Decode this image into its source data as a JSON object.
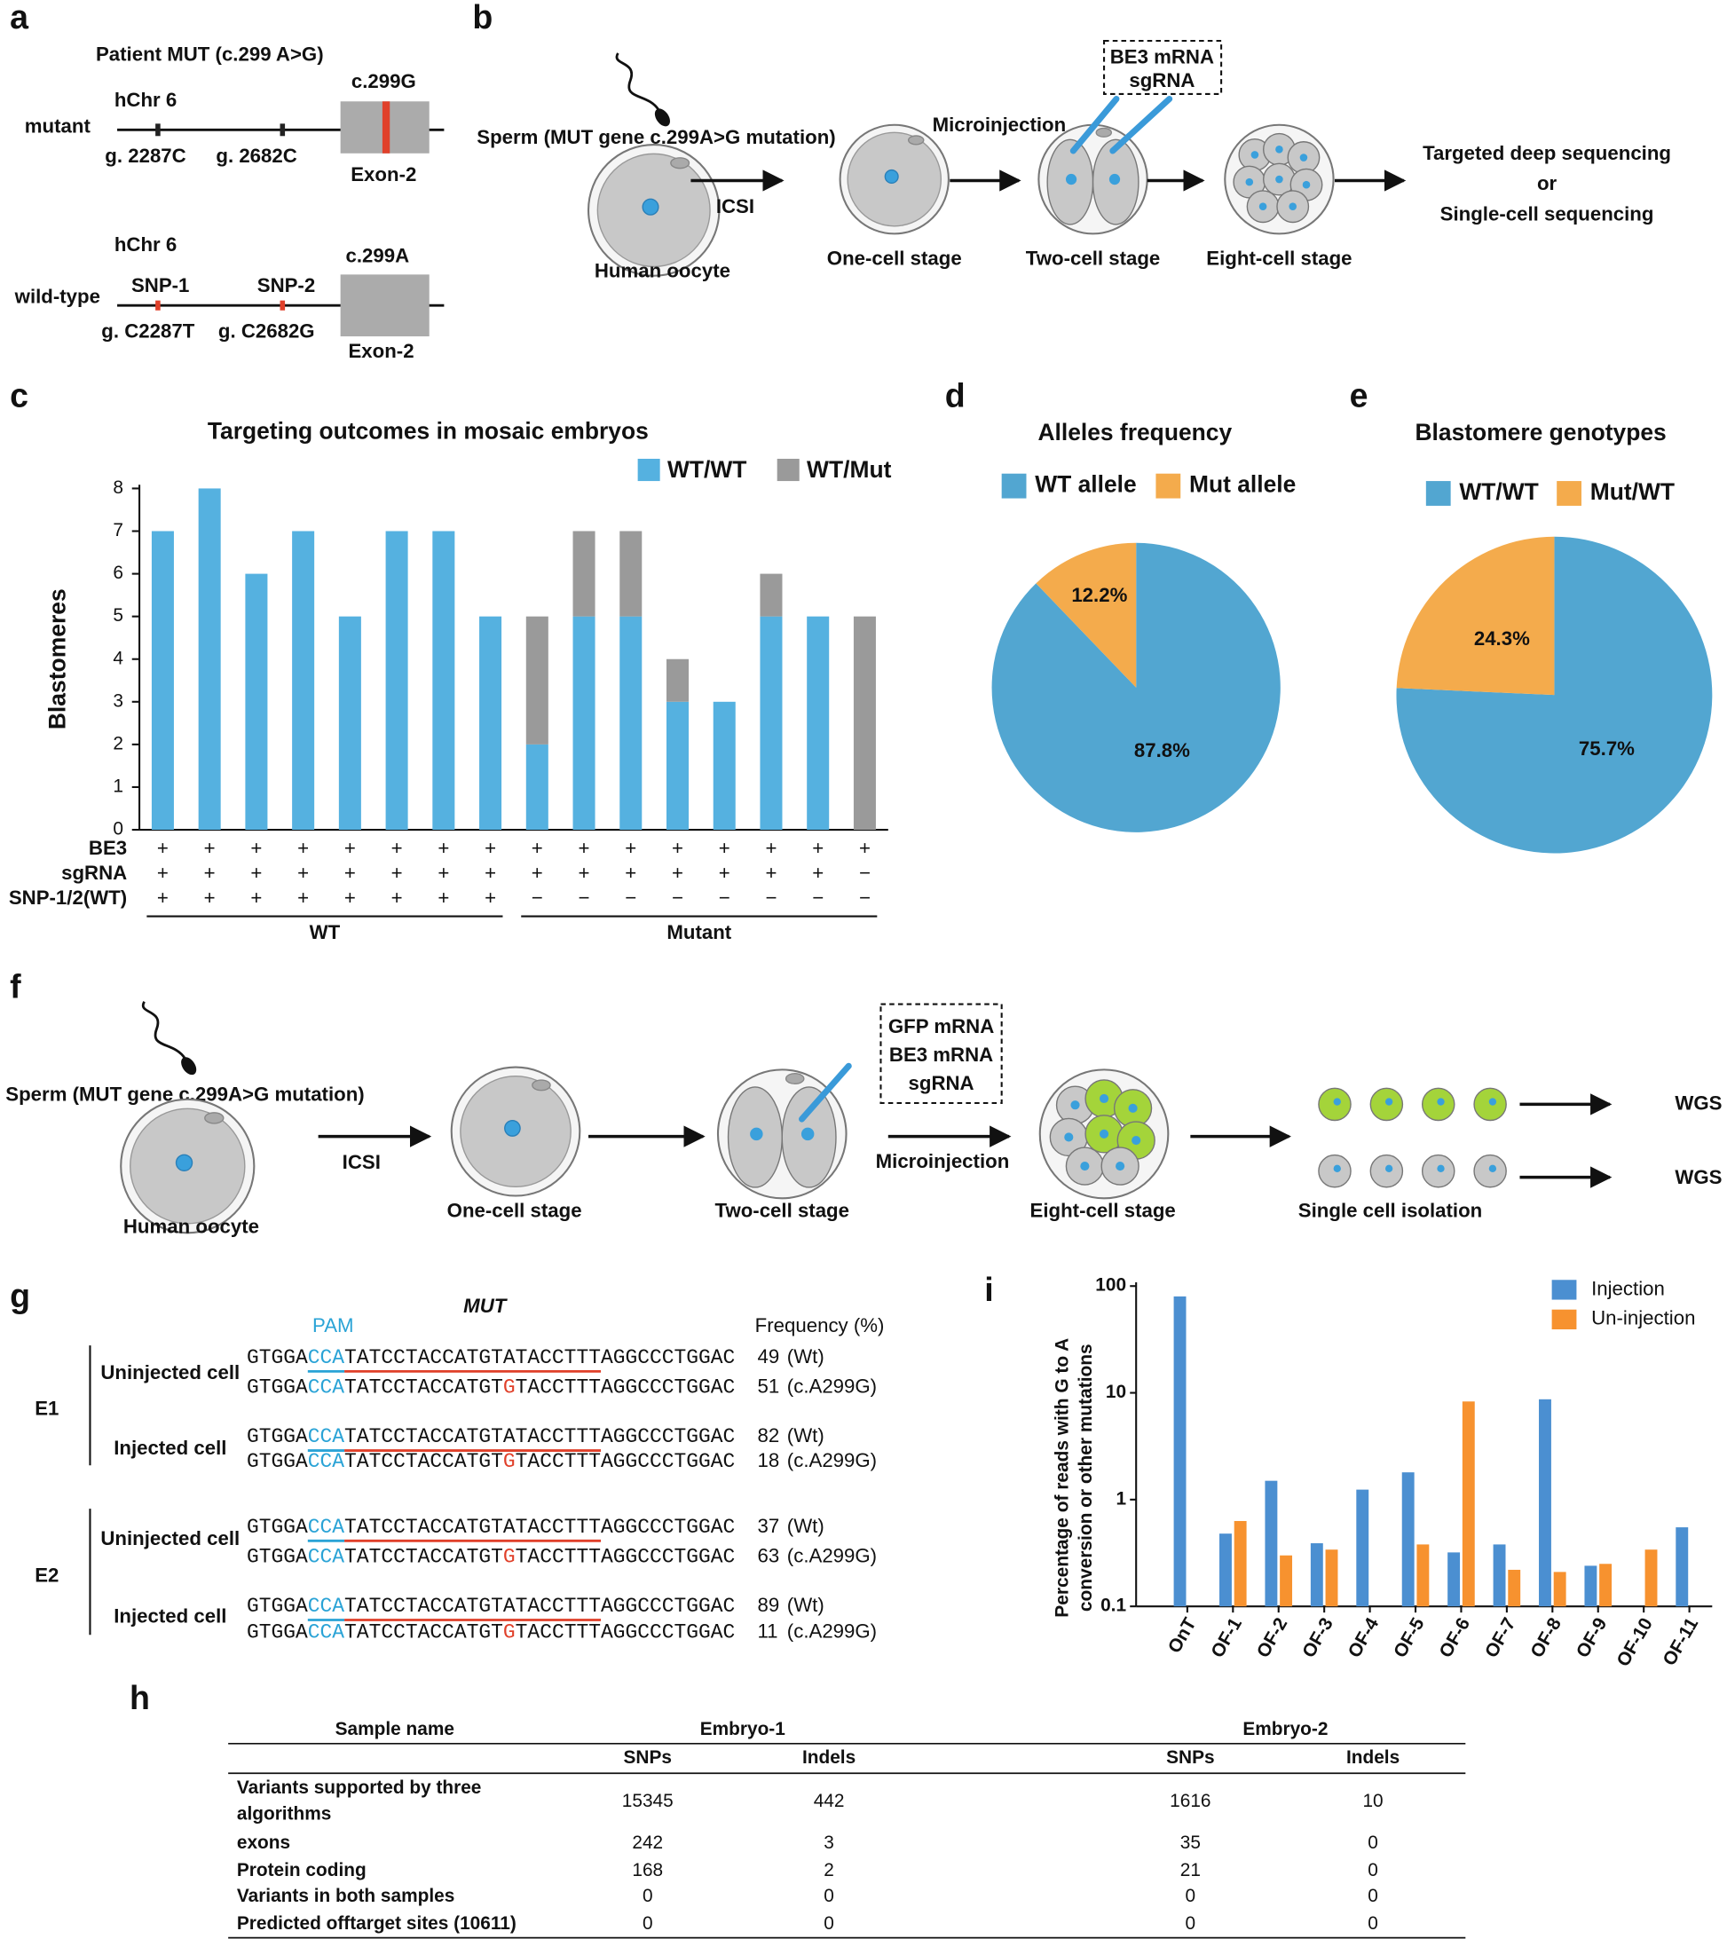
{
  "panel_labels": [
    "a",
    "b",
    "c",
    "d",
    "e",
    "f",
    "g",
    "h",
    "i"
  ],
  "panel_a": {
    "title": "Patient MUT (c.299 A>G)",
    "mutant": {
      "name": "mutant",
      "chr": "hChr 6",
      "exon_label": "c.299G",
      "exon": "Exon-2",
      "sites": [
        "g. 2287C",
        "g. 2682C"
      ]
    },
    "wild_type": {
      "name": "wild-type",
      "chr": "hChr 6",
      "exon_label": "c.299A",
      "exon": "Exon-2",
      "snps": [
        "SNP-1",
        "SNP-2"
      ],
      "sites": [
        "g. C2287T",
        "g. C2682G"
      ]
    }
  },
  "panel_b": {
    "sperm": "Sperm (MUT gene c.299A>G mutation)",
    "oocyte": "Human oocyte",
    "icsi": "ICSI",
    "one_cell": "One-cell stage",
    "microinjection": "Microinjection",
    "reagents": [
      "BE3 mRNA",
      "sgRNA"
    ],
    "two_cell": "Two-cell stage",
    "eight_cell": "Eight-cell stage",
    "outcome": [
      "Targeted deep sequencing",
      "or",
      "Single-cell sequencing"
    ]
  },
  "chart_data": [
    {
      "type": "bar",
      "stacked": true,
      "title": "Targeting outcomes in mosaic embryos",
      "y_label": "Blastomeres",
      "categories": [
        null,
        null,
        null,
        null,
        null,
        null,
        null,
        null,
        null,
        null,
        null,
        null,
        null,
        null,
        null,
        null
      ],
      "series": [
        {
          "name": "WT/WT",
          "color": "#55b1e0",
          "values": [
            7,
            8,
            6,
            7,
            5,
            7,
            7,
            5,
            2,
            5,
            5,
            3,
            3,
            5,
            5,
            0
          ]
        },
        {
          "name": "WT/Mut",
          "color": "#9a9a9a",
          "values": [
            0,
            0,
            0,
            0,
            0,
            0,
            0,
            0,
            3,
            2,
            2,
            1,
            0,
            1,
            0,
            5
          ]
        }
      ],
      "ylim": [
        0,
        8
      ],
      "yticks": [
        0,
        1,
        2,
        3,
        4,
        5,
        6,
        7,
        8
      ],
      "legend": "top-right",
      "conditions": [
        {
          "name": "BE3",
          "values": [
            "+",
            "+",
            "+",
            "+",
            "+",
            "+",
            "+",
            "+",
            "+",
            "+",
            "+",
            "+",
            "+",
            "+",
            "+",
            "+"
          ]
        },
        {
          "name": "sgRNA",
          "values": [
            "+",
            "+",
            "+",
            "+",
            "+",
            "+",
            "+",
            "+",
            "+",
            "+",
            "+",
            "+",
            "+",
            "+",
            "+",
            "−"
          ]
        },
        {
          "name": "SNP-1/2(WT)",
          "values": [
            "+",
            "+",
            "+",
            "+",
            "+",
            "+",
            "+",
            "+",
            "−",
            "−",
            "−",
            "−",
            "−",
            "−",
            "−",
            "−"
          ]
        }
      ],
      "groups": [
        "WT",
        "Mutant"
      ]
    },
    {
      "type": "pie",
      "title": "Alleles frequency",
      "categories": [
        "WT allele",
        "Mut allele"
      ],
      "values": [
        87.8,
        12.2
      ],
      "value_labels": [
        "87.8%",
        "12.2%"
      ],
      "colors": [
        "#52a6d1",
        "#f4ab4c"
      ]
    },
    {
      "type": "pie",
      "title": "Blastomere genotypes",
      "categories": [
        "WT/WT",
        "Mut/WT"
      ],
      "values": [
        75.7,
        24.3
      ],
      "value_labels": [
        "75.7%",
        "24.3%"
      ],
      "colors": [
        "#52a6d1",
        "#f4ab4c"
      ]
    },
    {
      "type": "bar",
      "log_scale": true,
      "y_label": [
        "Percentage of reads with G to A",
        "conversion or other mutations"
      ],
      "categories": [
        "OnT",
        "OF-1",
        "OF-2",
        "OF-3",
        "OF-4",
        "OF-5",
        "OF-6",
        "OF-7",
        "OF-8",
        "OF-9",
        "OF-10",
        "OF-11"
      ],
      "series": [
        {
          "name": "Injection",
          "color": "#4b8fd1",
          "values": [
            80,
            0.48,
            1.5,
            0.39,
            1.24,
            1.8,
            0.32,
            0.38,
            8.7,
            0.24,
            null,
            0.55
          ]
        },
        {
          "name": "Un-injection",
          "color": "#f7922f",
          "values": [
            null,
            0.63,
            0.3,
            0.34,
            null,
            0.38,
            8.3,
            0.22,
            0.21,
            0.25,
            0.34,
            null
          ]
        }
      ],
      "ylim": [
        0.1,
        100
      ],
      "yticks": [
        0.1,
        1,
        10,
        100
      ],
      "legend": "top-right"
    }
  ],
  "panel_f": {
    "sperm": "Sperm (MUT gene c.299A>G mutation)",
    "oocyte": "Human oocyte",
    "icsi": "ICSI",
    "one_cell": "One-cell stage",
    "two_cell": "Two-cell stage",
    "reagents": [
      "GFP mRNA",
      "BE3 mRNA",
      "sgRNA"
    ],
    "microinjection": "Microinjection",
    "eight_cell": "Eight-cell stage",
    "isolation": "Single cell isolation",
    "outputs": [
      "WGS",
      "WGS"
    ]
  },
  "panel_g": {
    "gene": "MUT",
    "pam": "PAM",
    "frequency_header": "Frequency (%)",
    "embryos": [
      {
        "name": "E1",
        "cells": [
          {
            "name": "Uninjected cell",
            "reads": [
              {
                "sequence": [
                  "GTGGA",
                  "CCA",
                  "TATCCTACCATGTATACCTTT",
                  "AGGCCCTGGAC"
                ],
                "frequency": 49,
                "note": "(Wt)"
              },
              {
                "sequence": [
                  "GTGGA",
                  "CCA",
                  "TATCCTACCATGT",
                  "G",
                  "TACCTTTAGGCCCTGGAC"
                ],
                "frequency": 51,
                "note": "(c.A299G)"
              }
            ]
          },
          {
            "name": "Injected cell",
            "reads": [
              {
                "sequence": [
                  "GTGGA",
                  "CCA",
                  "TATCCTACCATGTATACCTTT",
                  "AGGCCCTGGAC"
                ],
                "frequency": 82,
                "note": "(Wt)"
              },
              {
                "sequence": [
                  "GTGGA",
                  "CCA",
                  "TATCCTACCATGT",
                  "G",
                  "TACCTTTAGGCCCTGGAC"
                ],
                "frequency": 18,
                "note": "(c.A299G)"
              }
            ]
          }
        ]
      },
      {
        "name": "E2",
        "cells": [
          {
            "name": "Uninjected cell",
            "reads": [
              {
                "sequence": [
                  "GTGGA",
                  "CCA",
                  "TATCCTACCATGTATACCTTT",
                  "AGGCCCTGGAC"
                ],
                "frequency": 37,
                "note": "(Wt)"
              },
              {
                "sequence": [
                  "GTGGA",
                  "CCA",
                  "TATCCTACCATGT",
                  "G",
                  "TACCTTTAGGCCCTGGAC"
                ],
                "frequency": 63,
                "note": "(c.A299G)"
              }
            ]
          },
          {
            "name": "Injected cell",
            "reads": [
              {
                "sequence": [
                  "GTGGA",
                  "CCA",
                  "TATCCTACCATGTATACCTTT",
                  "AGGCCCTGGAC"
                ],
                "frequency": 89,
                "note": "(Wt)"
              },
              {
                "sequence": [
                  "GTGGA",
                  "CCA",
                  "TATCCTACCATGT",
                  "G",
                  "TACCTTTAGGCCCTGGAC"
                ],
                "frequency": 11,
                "note": "(c.A299G)"
              }
            ]
          }
        ]
      }
    ]
  },
  "panel_h": {
    "header": {
      "sample_name": "Sample name",
      "samples": [
        {
          "name": "Embryo-1",
          "columns": [
            "SNPs",
            "Indels"
          ]
        },
        {
          "name": "Embryo-2",
          "columns": [
            "SNPs",
            "Indels"
          ]
        }
      ]
    },
    "rows": [
      {
        "label": [
          "Variants supported by three",
          "algorithms"
        ],
        "values": [
          15345,
          442,
          1616,
          10
        ]
      },
      {
        "label": [
          "exons"
        ],
        "values": [
          242,
          3,
          35,
          0
        ]
      },
      {
        "label": [
          "Protein coding"
        ],
        "values": [
          168,
          2,
          21,
          0
        ]
      },
      {
        "label": [
          "Variants in both samples"
        ],
        "values": [
          0,
          0,
          0,
          0
        ]
      },
      {
        "label": [
          "Predicted offtarget sites (10611)"
        ],
        "values": [
          0,
          0,
          0,
          0
        ]
      }
    ]
  }
}
